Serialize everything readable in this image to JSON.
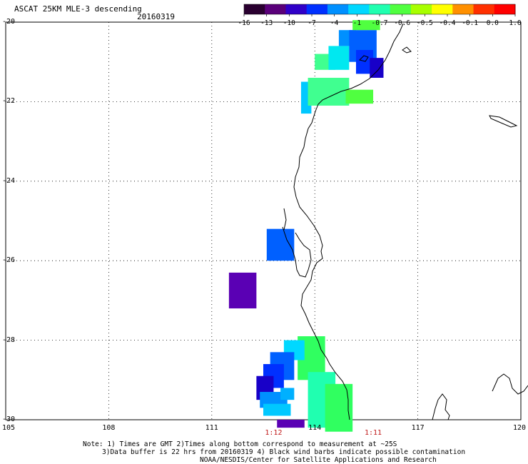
{
  "header": {
    "title": "ASCAT 25KM MLE-3 descending",
    "date": "20160319"
  },
  "colorbar": {
    "labels": [
      "-16",
      "-13",
      "-10",
      "-7",
      "-4",
      "-1",
      "-0.7",
      "-0.6",
      "-0.5",
      "-0.4",
      "-0.1",
      "0.0",
      "1.0"
    ],
    "colors": [
      "#2a0030",
      "#5a007a",
      "#3000c8",
      "#0030ff",
      "#0090ff",
      "#00d8ff",
      "#20ffb0",
      "#50ff40",
      "#a8ff00",
      "#ffff00",
      "#ff9000",
      "#ff3000",
      "#ff0000"
    ]
  },
  "map": {
    "lon_range": [
      105,
      120
    ],
    "lat_range": [
      -30,
      -20
    ],
    "x_ticks": [
      "105",
      "108",
      "111",
      "114",
      "117",
      "120"
    ],
    "y_ticks": [
      "-20",
      "-22",
      "-24",
      "-26",
      "-28",
      "-30"
    ],
    "times": [
      {
        "label": "1:12",
        "lon": 112.8
      },
      {
        "label": "1:11",
        "lon": 115.7
      }
    ],
    "mle_cells": [
      {
        "lon": 113.6,
        "lat": -21.5,
        "w": 0.3,
        "h": 0.8,
        "color": "#00c8ff"
      },
      {
        "lon": 113.8,
        "lat": -21.4,
        "w": 1.2,
        "h": 0.7,
        "color": "#40ff90"
      },
      {
        "lon": 114.0,
        "lat": -20.8,
        "w": 0.6,
        "h": 0.4,
        "color": "#40ff90"
      },
      {
        "lon": 114.4,
        "lat": -20.6,
        "w": 0.6,
        "h": 0.6,
        "color": "#00e8f0"
      },
      {
        "lon": 114.7,
        "lat": -20.2,
        "w": 0.5,
        "h": 0.4,
        "color": "#0090ff"
      },
      {
        "lon": 115.0,
        "lat": -20.2,
        "w": 0.8,
        "h": 0.8,
        "color": "#0060ff"
      },
      {
        "lon": 115.2,
        "lat": -20.7,
        "w": 0.5,
        "h": 0.6,
        "color": "#0030ff"
      },
      {
        "lon": 115.6,
        "lat": -20.9,
        "w": 0.4,
        "h": 0.5,
        "color": "#1800c8"
      },
      {
        "lon": 115.1,
        "lat": -19.95,
        "w": 0.8,
        "h": 0.25,
        "color": "#50ff40"
      },
      {
        "lon": 114.9,
        "lat": -21.7,
        "w": 0.8,
        "h": 0.35,
        "color": "#50ff40"
      },
      {
        "lon": 112.6,
        "lat": -25.2,
        "w": 0.8,
        "h": 0.8,
        "color": "#0060ff"
      },
      {
        "lon": 111.5,
        "lat": -26.3,
        "w": 0.8,
        "h": 0.9,
        "color": "#5a00b4"
      },
      {
        "lon": 113.5,
        "lat": -27.9,
        "w": 0.8,
        "h": 1.1,
        "color": "#30ff60"
      },
      {
        "lon": 113.8,
        "lat": -28.8,
        "w": 0.8,
        "h": 1.4,
        "color": "#20ffb0"
      },
      {
        "lon": 114.3,
        "lat": -29.1,
        "w": 0.8,
        "h": 1.2,
        "color": "#30ff60"
      },
      {
        "lon": 113.1,
        "lat": -28.0,
        "w": 0.6,
        "h": 0.5,
        "color": "#00d8ff"
      },
      {
        "lon": 112.7,
        "lat": -28.3,
        "w": 0.7,
        "h": 0.7,
        "color": "#0060ff"
      },
      {
        "lon": 112.5,
        "lat": -28.6,
        "w": 0.6,
        "h": 0.6,
        "color": "#0030ff"
      },
      {
        "lon": 112.3,
        "lat": -28.9,
        "w": 0.5,
        "h": 0.6,
        "color": "#1800c8"
      },
      {
        "lon": 112.4,
        "lat": -29.3,
        "w": 0.8,
        "h": 0.4,
        "color": "#0090ff"
      },
      {
        "lon": 112.5,
        "lat": -29.6,
        "w": 0.8,
        "h": 0.3,
        "color": "#00c8ff"
      },
      {
        "lon": 113.0,
        "lat": -29.2,
        "w": 0.4,
        "h": 0.3,
        "color": "#00b0ff"
      },
      {
        "lon": 112.9,
        "lat": -30.0,
        "w": 0.8,
        "h": 0.2,
        "color": "#5a00b4"
      }
    ]
  },
  "notes": {
    "line1": "Note: 1) Times are GMT 2)Times along bottom correspond to measurement at ~25S",
    "line2": "3)Data buffer is 22 hrs from 20160319 4) Black wind barbs indicate possible contamination",
    "line3": "NOAA/NESDIS/Center for Satellite Applications and Research"
  }
}
